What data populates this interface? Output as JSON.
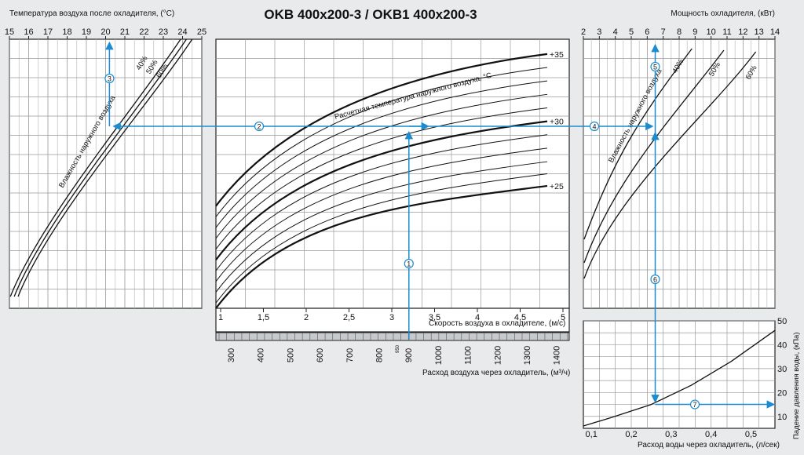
{
  "title": "OKB 400x200-3 / OKB1 400x200-3",
  "colors": {
    "background": "#e9eaec",
    "panel": "#ffffff",
    "grid": "#9a9a9a",
    "curve": "#111111",
    "path": "#1a8ccf",
    "bar": "#c8c9cc"
  },
  "chart_data": [
    {
      "type": "line",
      "panel": "outlet-temperature",
      "xlabel": "Температура воздуха после охладителя, (°C)",
      "x_ticks": [
        "15",
        "16",
        "17",
        "18",
        "19",
        "20",
        "21",
        "22",
        "23",
        "24",
        "25"
      ],
      "xlim": [
        15,
        25
      ],
      "annotation": "Влажность наружного воздуха",
      "series": [
        {
          "name": "40%",
          "x_bottom": 15.05,
          "x_top": 23.9
        },
        {
          "name": "50%",
          "x_bottom": 15.25,
          "x_top": 24.2
        },
        {
          "name": "60%",
          "x_bottom": 15.45,
          "x_top": 24.5
        }
      ]
    },
    {
      "type": "line",
      "panel": "air-velocity",
      "xlabel": "Скорость воздуха в охладителе, (м/с)",
      "x_ticks": [
        "1",
        "1,5",
        "2",
        "2,5",
        "3",
        "3,5",
        "4",
        "4,5",
        "5"
      ],
      "xlim": [
        1,
        5
      ],
      "x2label": "Расход воздуха через охладитель, (м³/ч)",
      "x2_ticks": [
        "300",
        "400",
        "500",
        "600",
        "700",
        "800",
        "900",
        "1000",
        "1100",
        "1200",
        "1300",
        "1400"
      ],
      "x2_note": "950",
      "annotation": "Расчетная температура наружного воздуха, °C",
      "curve_labels": [
        "+35",
        "+30",
        "+25"
      ],
      "series": [
        {
          "name": "+35",
          "y0": 0.62,
          "y1": 0.055
        },
        {
          "name": "",
          "y0": 0.66,
          "y1": 0.105
        },
        {
          "name": "",
          "y0": 0.7,
          "y1": 0.155
        },
        {
          "name": "",
          "y0": 0.74,
          "y1": 0.205
        },
        {
          "name": "",
          "y0": 0.78,
          "y1": 0.255
        },
        {
          "name": "+30",
          "y0": 0.82,
          "y1": 0.305
        },
        {
          "name": "",
          "y0": 0.86,
          "y1": 0.355
        },
        {
          "name": "",
          "y0": 0.9,
          "y1": 0.405
        },
        {
          "name": "",
          "y0": 0.94,
          "y1": 0.455
        },
        {
          "name": "",
          "y0": 0.98,
          "y1": 0.5
        },
        {
          "name": "+25",
          "y0": 1.02,
          "y1": 0.545
        }
      ]
    },
    {
      "type": "line",
      "panel": "cooling-power",
      "xlabel": "Мощность охладителя, (кВт)",
      "x_ticks": [
        "2",
        "3",
        "4",
        "5",
        "6",
        "7",
        "8",
        "9",
        "10",
        "11",
        "12",
        "13",
        "14"
      ],
      "xlim": [
        2,
        14
      ],
      "annotation": "Влажность наружного воздуха",
      "series": [
        {
          "name": "40%",
          "x_bottom": 2.0,
          "x_top": 8.8
        },
        {
          "name": "50%",
          "x_bottom": 2.1,
          "x_top": 10.8
        },
        {
          "name": "60%",
          "x_bottom": 2.2,
          "x_top": 12.8
        }
      ]
    },
    {
      "type": "line",
      "panel": "pressure-drop",
      "xlabel": "Расход воды через охладитель, (л/сек)",
      "x_ticks": [
        "0,1",
        "0,2",
        "0,3",
        "0,4",
        "0,5"
      ],
      "xlim": [
        0.08,
        0.56
      ],
      "ylabel": "Падение давления воды, (кПа)",
      "y_ticks": [
        "10",
        "20",
        "30",
        "40",
        "50"
      ],
      "ylim": [
        5,
        50
      ],
      "series": [
        {
          "name": "",
          "x": [
            0.08,
            0.15,
            0.25,
            0.35,
            0.45,
            0.56
          ],
          "y": [
            6,
            9.5,
            15,
            23,
            33,
            46
          ]
        }
      ]
    }
  ],
  "path": {
    "steps": [
      "1",
      "2",
      "3",
      "4",
      "5",
      "6",
      "7"
    ],
    "air_velocity": 3.2,
    "air_flow": 950,
    "outlet_temperature": 20.2,
    "cooling_power": 6.5,
    "water_flow": 0.26,
    "pressure_drop": 15
  }
}
